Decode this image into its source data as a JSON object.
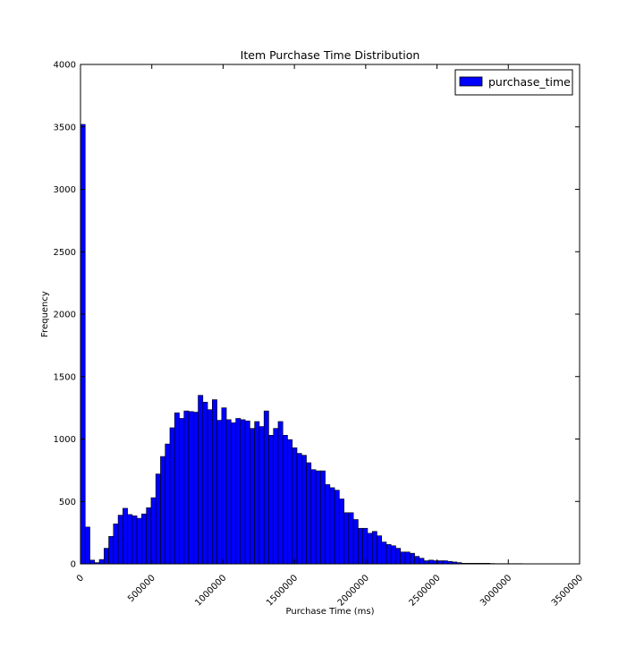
{
  "chart_data": {
    "type": "bar",
    "title": "Item Purchase Time Distribution",
    "xlabel": "Purchase Time (ms)",
    "ylabel": "Frequency",
    "xlim": [
      0,
      3500000
    ],
    "ylim": [
      0,
      4000
    ],
    "x_ticks": [
      0,
      500000,
      1000000,
      1500000,
      2000000,
      2500000,
      3000000,
      3500000
    ],
    "x_tick_labels": [
      "0",
      "500000",
      "1000000",
      "1500000",
      "2000000",
      "2500000",
      "3000000",
      "3500000"
    ],
    "y_ticks": [
      0,
      500,
      1000,
      1500,
      2000,
      2500,
      3000,
      3500,
      4000
    ],
    "y_tick_labels": [
      "0",
      "500",
      "1000",
      "1500",
      "2000",
      "2500",
      "3000",
      "3500",
      "4000"
    ],
    "grid": false,
    "legend_position": "top-right",
    "bin_start": 0,
    "bin_width": 33000,
    "series": [
      {
        "name": "purchase_time",
        "color": "#0000ff",
        "edge_color": "#000000",
        "values": [
          3520,
          295,
          30,
          10,
          35,
          125,
          220,
          320,
          390,
          445,
          395,
          385,
          365,
          400,
          450,
          530,
          720,
          860,
          960,
          1090,
          1210,
          1165,
          1225,
          1220,
          1215,
          1350,
          1295,
          1235,
          1315,
          1150,
          1250,
          1155,
          1130,
          1165,
          1155,
          1145,
          1085,
          1140,
          1100,
          1225,
          1030,
          1085,
          1140,
          1030,
          995,
          930,
          885,
          870,
          810,
          755,
          745,
          745,
          635,
          610,
          590,
          520,
          410,
          410,
          355,
          285,
          285,
          245,
          260,
          225,
          175,
          155,
          145,
          125,
          95,
          95,
          85,
          60,
          45,
          25,
          30,
          25,
          25,
          25,
          20,
          15,
          10,
          5,
          5,
          5,
          5,
          5,
          5,
          3,
          2,
          2,
          2,
          2,
          2,
          2,
          1,
          1,
          1,
          1,
          1,
          1,
          1
        ]
      }
    ]
  }
}
